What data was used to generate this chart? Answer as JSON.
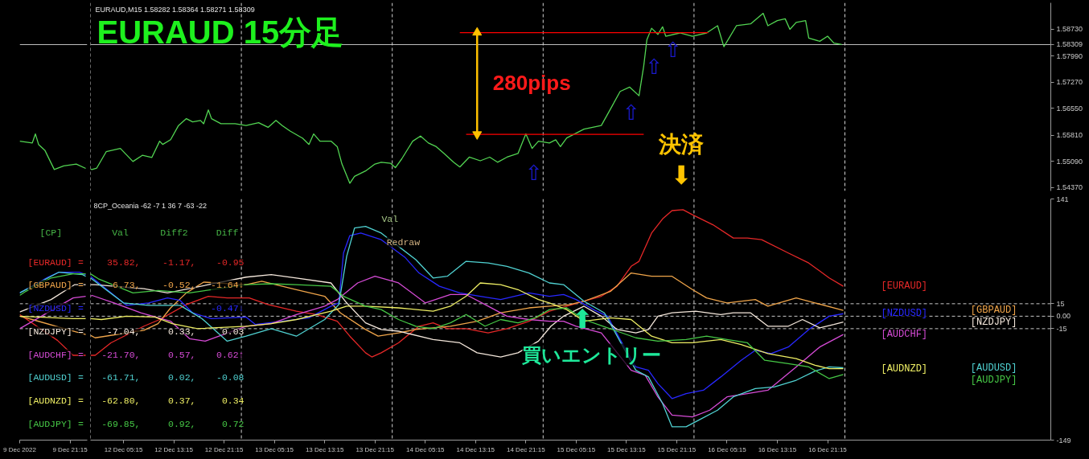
{
  "chart_data": [
    {
      "type": "line",
      "xlim": [
        "2022-12-09T13:15",
        "2022-12-10T00:00"
      ],
      "ylim": [
        1.5428,
        1.5946
      ],
      "tick_labels": false,
      "ref_lines": [
        {
          "axis": "y",
          "value": 1.58309,
          "color": "#c0c0c0",
          "line_style": "solid"
        }
      ],
      "series": [
        {
          "color": "#52d452",
          "x": [
            "2022-12-09T13:15",
            "2022-12-09T15:15",
            "2022-12-09T15:45",
            "2022-12-09T16:15",
            "2022-12-09T17:15",
            "2022-12-09T18:45",
            "2022-12-09T20:15",
            "2022-12-09T22:15",
            "2022-12-09T23:45"
          ],
          "values": [
            1.5565,
            1.556,
            1.5585,
            1.5556,
            1.554,
            1.5487,
            1.5497,
            1.5502,
            1.549
          ]
        }
      ]
    },
    {
      "type": "line",
      "title": "EURAUD 15分足",
      "subtitle": "EURAUD,M15 1.58282 1.58364 1.58271 1.58309",
      "xlim": [
        "2022-12-12T00:00",
        "2022-12-18T08:45"
      ],
      "ylim": [
        1.5428,
        1.5946
      ],
      "yticks": [
        {
          "value": 1.5873,
          "label": "1.58730"
        },
        {
          "value": 1.5799,
          "label": "1.57990"
        },
        {
          "value": 1.5727,
          "label": "1.57270"
        },
        {
          "value": 1.5655,
          "label": "1.56550"
        },
        {
          "value": 1.5581,
          "label": "1.55810"
        },
        {
          "value": 1.5509,
          "label": "1.55090"
        },
        {
          "value": 1.5437,
          "label": "1.54370"
        }
      ],
      "tick_labels": "y",
      "ref_lines": [
        {
          "axis": "y",
          "value": 1.58309,
          "label": "1.58309",
          "color": "#c0c0c0",
          "line_style": "solid"
        },
        {
          "axis": "x",
          "value": "2022-12-12T00:00",
          "color": "#d2d2d2",
          "line_style": "dashed"
        },
        {
          "axis": "x",
          "value": "2022-12-13T00:00",
          "color": "#d2d2d2",
          "line_style": "dashed"
        },
        {
          "axis": "x",
          "value": "2022-12-14T00:00",
          "color": "#d2d2d2",
          "line_style": "dashed"
        },
        {
          "axis": "x",
          "value": "2022-12-15T00:00",
          "color": "#d2d2d2",
          "line_style": "dashed"
        },
        {
          "axis": "x",
          "value": "2022-12-16T00:00",
          "color": "#d2d2d2",
          "line_style": "dashed"
        },
        {
          "axis": "x",
          "value": "2022-12-17T00:00",
          "color": "#d2d2d2",
          "line_style": "dashed"
        }
      ],
      "series": [
        {
          "color": "#52d452",
          "x": [
            "2022-12-12T00:00",
            "2022-12-12T00:15",
            "2022-12-12T01:00",
            "2022-12-12T02:30",
            "2022-12-12T04:45",
            "2022-12-12T06:45",
            "2022-12-12T08:15",
            "2022-12-12T09:45",
            "2022-12-12T11:00",
            "2022-12-12T11:30",
            "2022-12-12T12:45",
            "2022-12-12T14:00",
            "2022-12-12T15:15",
            "2022-12-12T16:15",
            "2022-12-12T17:30",
            "2022-12-12T18:00",
            "2022-12-12T18:45",
            "2022-12-12T19:15",
            "2022-12-12T20:45",
            "2022-12-12T23:00",
            "2022-12-13T00:45",
            "2022-12-13T02:45",
            "2022-12-13T04:15",
            "2022-12-13T05:30",
            "2022-12-13T06:30",
            "2022-12-13T07:45",
            "2022-12-13T09:45",
            "2022-12-13T10:45",
            "2022-12-13T11:30",
            "2022-12-13T12:30",
            "2022-12-13T14:15",
            "2022-12-13T15:15",
            "2022-12-13T16:00",
            "2022-12-13T17:15",
            "2022-12-13T18:00",
            "2022-12-13T19:45",
            "2022-12-13T21:15",
            "2022-12-13T22:15",
            "2022-12-13T23:45",
            "2022-12-14T00:30",
            "2022-12-14T01:30",
            "2022-12-14T03:15",
            "2022-12-14T04:30",
            "2022-12-14T05:45",
            "2022-12-14T07:00",
            "2022-12-14T08:15",
            "2022-12-14T09:45",
            "2022-12-14T10:45",
            "2022-12-14T12:15",
            "2022-12-14T14:00",
            "2022-12-14T15:30",
            "2022-12-14T16:45",
            "2022-12-14T18:15",
            "2022-12-14T20:00",
            "2022-12-14T21:15",
            "2022-12-14T22:15",
            "2022-12-14T23:15",
            "2022-12-15T01:00",
            "2022-12-15T02:00",
            "2022-12-15T02:45",
            "2022-12-15T03:45",
            "2022-12-15T06:30",
            "2022-12-15T09:15",
            "2022-12-15T10:30",
            "2022-12-15T12:15",
            "2022-12-15T13:45",
            "2022-12-15T15:15",
            "2022-12-15T16:00",
            "2022-12-15T16:30",
            "2022-12-15T17:15",
            "2022-12-15T18:15",
            "2022-12-15T19:00",
            "2022-12-15T19:30",
            "2022-12-15T21:45",
            "2022-12-15T23:45",
            "2022-12-16T02:00",
            "2022-12-16T03:45",
            "2022-12-16T04:45",
            "2022-12-16T06:45",
            "2022-12-16T09:00",
            "2022-12-16T11:00",
            "2022-12-16T11:45",
            "2022-12-16T13:15",
            "2022-12-16T14:30",
            "2022-12-16T15:15",
            "2022-12-16T16:15",
            "2022-12-16T17:45",
            "2022-12-16T18:15",
            "2022-12-16T20:00",
            "2022-12-16T21:15",
            "2022-12-16T22:15",
            "2022-12-16T23:30"
          ],
          "values": [
            1.5488,
            1.5487,
            1.5491,
            1.5536,
            1.5545,
            1.5509,
            1.5526,
            1.552,
            1.5565,
            1.5556,
            1.5569,
            1.5608,
            1.5627,
            1.5618,
            1.5622,
            1.5613,
            1.5651,
            1.5627,
            1.5613,
            1.5613,
            1.5608,
            1.5616,
            1.5603,
            1.5622,
            1.5608,
            1.5593,
            1.5573,
            1.5556,
            1.5585,
            1.5565,
            1.5565,
            1.555,
            1.5502,
            1.5449,
            1.5468,
            1.5483,
            1.5502,
            1.5507,
            1.5504,
            1.5492,
            1.5516,
            1.5565,
            1.5579,
            1.556,
            1.555,
            1.5531,
            1.5507,
            1.5494,
            1.5521,
            1.5511,
            1.5521,
            1.5507,
            1.5521,
            1.5531,
            1.5585,
            1.5545,
            1.5565,
            1.556,
            1.5569,
            1.555,
            1.5574,
            1.5598,
            1.5608,
            1.5647,
            1.5702,
            1.5714,
            1.569,
            1.5772,
            1.5844,
            1.5876,
            1.5859,
            1.588,
            1.5854,
            1.5863,
            1.5854,
            1.5863,
            1.5883,
            1.5825,
            1.5883,
            1.5888,
            1.5917,
            1.5883,
            1.5897,
            1.5902,
            1.5873,
            1.5892,
            1.5897,
            1.5849,
            1.584,
            1.5854,
            1.5835,
            1.5831
          ]
        },
        {
          "color": "#ff0000",
          "x": [
            "2022-12-14T10:45",
            "2022-12-16T02:15"
          ],
          "values": [
            1.5864,
            1.5864
          ]
        },
        {
          "color": "#ff0000",
          "x": [
            "2022-12-14T11:45",
            "2022-12-15T16:00"
          ],
          "values": [
            1.5584,
            1.5584
          ]
        },
        {
          "color": "#ffc000",
          "marker": "triangle",
          "x": [
            "2022-12-14T13:30",
            "2022-12-14T13:30"
          ],
          "values": [
            1.5864,
            1.5584
          ]
        }
      ],
      "annotations": [
        "280pips",
        "決済",
        "⬇",
        "⇧",
        "⇧",
        "⇧",
        "⇧"
      ]
    },
    {
      "type": "line",
      "xlim": [
        "2022-12-09T13:15",
        "2022-12-10T00:00"
      ],
      "xticks": [
        {
          "value": "2022-12-09T13:15",
          "label": "9 Dec 2022"
        },
        {
          "value": "2022-12-09T21:15",
          "label": "9 Dec 21:15"
        }
      ],
      "ylim": [
        -149,
        141
      ],
      "tick_labels": "x",
      "ref_lines": [
        {
          "axis": "y",
          "value": 15,
          "color": "#c8c8c8",
          "line_style": "dashed"
        },
        {
          "axis": "y",
          "value": 0,
          "color": "#c8c8c8",
          "line_style": "dashed"
        },
        {
          "axis": "y",
          "value": -15,
          "color": "#c8c8c8",
          "line_style": "dashed"
        }
      ],
      "series": [
        {
          "color": "#e62828",
          "x": [
            "2022-12-09T13:15",
            "2022-12-09T19:15",
            "2022-12-09T21:45",
            "2022-12-09T23:45"
          ],
          "values": [
            2,
            -29,
            -47,
            -47
          ]
        },
        {
          "color": "#f0a54a",
          "x": [
            "2022-12-09T13:15",
            "2022-12-09T15:15",
            "2022-12-09T21:45",
            "2022-12-09T23:45"
          ],
          "values": [
            0,
            -4,
            -18,
            -22
          ]
        },
        {
          "color": "#2828ff",
          "x": [
            "2022-12-09T13:15",
            "2022-12-09T17:45",
            "2022-12-09T19:30",
            "2022-12-09T22:45",
            "2022-12-09T23:45"
          ],
          "values": [
            28,
            47,
            53,
            53,
            50
          ]
        },
        {
          "color": "#f5e8dc",
          "x": [
            "2022-12-09T13:15",
            "2022-12-09T18:15",
            "2022-12-09T22:00",
            "2022-12-09T23:45"
          ],
          "values": [
            5,
            20,
            38,
            38
          ]
        },
        {
          "color": "#d64bd6",
          "x": [
            "2022-12-09T13:15",
            "2022-12-09T21:45",
            "2022-12-09T23:45"
          ],
          "values": [
            -15,
            22,
            24
          ]
        },
        {
          "color": "#50d2d2",
          "x": [
            "2022-12-09T13:15",
            "2022-12-09T19:30",
            "2022-12-09T23:15",
            "2022-12-09T23:45"
          ],
          "values": [
            28,
            53,
            50,
            48
          ]
        },
        {
          "color": "#eeee64",
          "x": [
            "2022-12-09T13:15",
            "2022-12-09T21:45",
            "2022-12-09T23:45"
          ],
          "values": [
            0,
            -3,
            -3
          ]
        },
        {
          "color": "#46c846",
          "x": [
            "2022-12-09T13:15",
            "2022-12-09T14:15",
            "2022-12-09T18:15",
            "2022-12-09T21:45",
            "2022-12-09T23:45"
          ],
          "values": [
            25,
            30,
            46,
            51,
            51
          ]
        }
      ],
      "annotations": [
        "[CP]",
        "[EURAUD] =",
        "[GBPAUD] =",
        "[NZDUSD] =",
        "[NZDJPY] =",
        "[AUDCHF] =",
        "[AUDUSD] =",
        "[AUDNZD] =",
        "[AUDJPY] ="
      ]
    },
    {
      "type": "line",
      "title": "8CP_Oceania -62 -7 1 36 7 -63 -22",
      "xlim": [
        "2022-12-12T00:00",
        "2022-12-18T08:45"
      ],
      "xticks": [
        {
          "value": "2022-12-12T05:15",
          "label": "12 Dec 05:15"
        },
        {
          "value": "2022-12-12T13:15",
          "label": "12 Dec 13:15"
        },
        {
          "value": "2022-12-12T21:15",
          "label": "12 Dec 21:15"
        },
        {
          "value": "2022-12-13T05:15",
          "label": "13 Dec 05:15"
        },
        {
          "value": "2022-12-13T13:15",
          "label": "13 Dec 13:15"
        },
        {
          "value": "2022-12-13T21:15",
          "label": "13 Dec 21:15"
        },
        {
          "value": "2022-12-14T05:15",
          "label": "14 Dec 05:15"
        },
        {
          "value": "2022-12-14T13:15",
          "label": "14 Dec 13:15"
        },
        {
          "value": "2022-12-14T21:15",
          "label": "14 Dec 21:15"
        },
        {
          "value": "2022-12-15T05:15",
          "label": "15 Dec 05:15"
        },
        {
          "value": "2022-12-15T13:15",
          "label": "15 Dec 13:15"
        },
        {
          "value": "2022-12-15T21:15",
          "label": "15 Dec 21:15"
        },
        {
          "value": "2022-12-16T05:15",
          "label": "16 Dec 05:15"
        },
        {
          "value": "2022-12-16T13:15",
          "label": "16 Dec 13:15"
        },
        {
          "value": "2022-12-16T21:15",
          "label": "16 Dec 21:15"
        }
      ],
      "ylim": [
        -149,
        141
      ],
      "yticks": [
        141,
        15,
        {
          "value": 0,
          "label": "0.00"
        },
        -15,
        -149
      ],
      "ref_lines": [
        {
          "axis": "y",
          "value": 15,
          "color": "#c8c8c8",
          "line_style": "dashed"
        },
        {
          "axis": "y",
          "value": 0,
          "color": "#c8c8c8",
          "line_style": "dashed"
        },
        {
          "axis": "y",
          "value": -15,
          "color": "#c8c8c8",
          "line_style": "dashed"
        },
        {
          "axis": "x",
          "value": "2022-12-12T00:00",
          "color": "#d2d2d2",
          "line_style": "dashed"
        },
        {
          "axis": "x",
          "value": "2022-12-13T00:00",
          "color": "#d2d2d2",
          "line_style": "dashed"
        },
        {
          "axis": "x",
          "value": "2022-12-14T00:00",
          "color": "#d2d2d2",
          "line_style": "dashed"
        },
        {
          "axis": "x",
          "value": "2022-12-15T00:00",
          "color": "#d2d2d2",
          "line_style": "dashed"
        },
        {
          "axis": "x",
          "value": "2022-12-16T00:00",
          "color": "#d2d2d2",
          "line_style": "dashed"
        },
        {
          "axis": "x",
          "value": "2022-12-17T00:00",
          "color": "#d2d2d2",
          "line_style": "dashed"
        }
      ],
      "series": [
        {
          "name": "[EURAUD]",
          "color": "#e62828",
          "x": [
            "2022-12-12T00:00",
            "2022-12-12T00:45",
            "2022-12-12T03:15",
            "2022-12-12T08:30",
            "2022-12-12T11:00",
            "2022-12-12T15:15",
            "2022-12-12T18:45",
            "2022-12-12T21:45",
            "2022-12-13T01:15",
            "2022-12-13T04:15",
            "2022-12-13T08:45",
            "2022-12-13T12:00",
            "2022-12-13T15:15",
            "2022-12-13T17:15",
            "2022-12-13T19:45",
            "2022-12-13T20:45",
            "2022-12-13T22:15",
            "2022-12-14T01:00",
            "2022-12-14T04:15",
            "2022-12-14T06:30",
            "2022-12-14T08:45",
            "2022-12-14T11:45",
            "2022-12-14T15:15",
            "2022-12-14T18:15",
            "2022-12-14T21:45",
            "2022-12-15T01:00",
            "2022-12-15T03:45",
            "2022-12-15T06:30",
            "2022-12-15T09:15",
            "2022-12-15T11:45",
            "2022-12-15T14:00",
            "2022-12-15T15:15",
            "2022-12-15T17:15",
            "2022-12-15T19:00",
            "2022-12-15T20:30",
            "2022-12-15T22:15",
            "2022-12-15T23:45",
            "2022-12-16T03:00",
            "2022-12-16T06:15",
            "2022-12-16T08:30",
            "2022-12-16T10:45",
            "2022-12-16T15:00",
            "2022-12-16T18:15",
            "2022-12-16T21:30",
            "2022-12-16T23:45"
          ],
          "values": [
            -47,
            -47,
            -32,
            -12,
            -4,
            14,
            24,
            22,
            22,
            14,
            6,
            2,
            -6,
            -24,
            -44,
            -49,
            -44,
            -32,
            -12,
            -8,
            -15,
            -15,
            -20,
            -15,
            -6,
            6,
            12,
            18,
            24,
            36,
            60,
            66,
            100,
            117,
            127,
            128,
            122,
            110,
            94,
            94,
            92,
            76,
            64,
            46,
            36
          ]
        },
        {
          "name": "[GBPAUD]",
          "color": "#f0a54a",
          "x": [
            "2022-12-12T00:00",
            "2022-12-12T00:45",
            "2022-12-12T08:30",
            "2022-12-12T10:45",
            "2022-12-12T12:45",
            "2022-12-12T15:15",
            "2022-12-12T18:00",
            "2022-12-13T00:45",
            "2022-12-13T03:15",
            "2022-12-13T08:45",
            "2022-12-13T13:15",
            "2022-12-13T15:45",
            "2022-12-13T19:45",
            "2022-12-13T21:45",
            "2022-12-14T01:00",
            "2022-12-14T03:45",
            "2022-12-14T09:15",
            "2022-12-14T13:30",
            "2022-12-14T17:15",
            "2022-12-14T21:45",
            "2022-12-15T01:00",
            "2022-12-15T04:15",
            "2022-12-15T06:30",
            "2022-12-15T10:45",
            "2022-12-15T14:00",
            "2022-12-15T17:15",
            "2022-12-15T20:30",
            "2022-12-15T23:45",
            "2022-12-16T02:00",
            "2022-12-16T05:15",
            "2022-12-16T09:45",
            "2022-12-16T11:45",
            "2022-12-16T16:15",
            "2022-12-16T19:15",
            "2022-12-16T23:45"
          ],
          "values": [
            -23,
            -26,
            -17,
            -9,
            10,
            28,
            41,
            38,
            42,
            32,
            24,
            4,
            -16,
            -24,
            -20,
            -16,
            -12,
            -6,
            4,
            10,
            12,
            14,
            18,
            30,
            52,
            48,
            48,
            32,
            22,
            16,
            20,
            12,
            22,
            16,
            7
          ]
        },
        {
          "name": "[NZDUSD]",
          "color": "#2828ff",
          "x": [
            "2022-12-12T00:00",
            "2022-12-12T04:15",
            "2022-12-12T05:45",
            "2022-12-12T09:15",
            "2022-12-12T12:15",
            "2022-12-12T14:15",
            "2022-12-12T16:15",
            "2022-12-12T19:15",
            "2022-12-13T00:45",
            "2022-12-13T02:15",
            "2022-12-13T06:30",
            "2022-12-13T10:45",
            "2022-12-13T14:15",
            "2022-12-13T15:30",
            "2022-12-13T16:15",
            "2022-12-13T17:15",
            "2022-12-13T19:00",
            "2022-12-13T22:15",
            "2022-12-14T02:00",
            "2022-12-14T04:15",
            "2022-12-14T07:30",
            "2022-12-14T10:45",
            "2022-12-14T14:00",
            "2022-12-14T17:15",
            "2022-12-14T21:45",
            "2022-12-15T01:00",
            "2022-12-15T03:15",
            "2022-12-15T05:15",
            "2022-12-15T08:15",
            "2022-12-15T10:15",
            "2022-12-15T12:15",
            "2022-12-15T14:45",
            "2022-12-15T16:45",
            "2022-12-15T18:15",
            "2022-12-15T20:30",
            "2022-12-15T22:45",
            "2022-12-16T01:30",
            "2022-12-16T04:15",
            "2022-12-16T07:30",
            "2022-12-16T09:45",
            "2022-12-16T12:15",
            "2022-12-16T15:00",
            "2022-12-16T18:15",
            "2022-12-16T21:30",
            "2022-12-16T23:45"
          ],
          "values": [
            48,
            22,
            13,
            16,
            22,
            19,
            4,
            -3,
            -1,
            -10,
            -6,
            -2,
            12,
            16,
            76,
            97,
            100,
            92,
            71,
            52,
            36,
            28,
            24,
            20,
            28,
            24,
            26,
            20,
            7,
            0,
            -28,
            -61,
            -65,
            -81,
            -99,
            -93,
            -89,
            -73,
            -53,
            -41,
            -45,
            -37,
            -16,
            0,
            3
          ]
        },
        {
          "name": "[NZDJPY]",
          "color": "#f5e8dc",
          "x": [
            "2022-12-12T00:00",
            "2022-12-12T00:45",
            "2022-12-12T08:30",
            "2022-12-12T12:15",
            "2022-12-13T00:45",
            "2022-12-13T04:45",
            "2022-12-13T08:45",
            "2022-12-13T14:15",
            "2022-12-13T16:45",
            "2022-12-13T19:45",
            "2022-12-13T22:15",
            "2022-12-14T01:00",
            "2022-12-14T06:30",
            "2022-12-14T10:45",
            "2022-12-14T13:30",
            "2022-12-14T17:15",
            "2022-12-14T20:00",
            "2022-12-14T23:15",
            "2022-12-15T01:15",
            "2022-12-15T03:15",
            "2022-12-15T06:30",
            "2022-12-15T09:15",
            "2022-12-15T11:45",
            "2022-12-15T14:45",
            "2022-12-15T16:45",
            "2022-12-15T18:15",
            "2022-12-15T20:30",
            "2022-12-16T00:15",
            "2022-12-16T04:15",
            "2022-12-16T06:15",
            "2022-12-16T09:00",
            "2022-12-16T11:45",
            "2022-12-16T15:00",
            "2022-12-16T17:15",
            "2022-12-16T20:00",
            "2022-12-16T22:15",
            "2022-12-16T23:45"
          ],
          "values": [
            38,
            38,
            33,
            28,
            47,
            50,
            46,
            40,
            16,
            -8,
            -16,
            -18,
            -28,
            -32,
            -44,
            -49,
            -44,
            -30,
            -12,
            0,
            12,
            0,
            -16,
            -20,
            -16,
            0,
            4,
            6,
            2,
            4,
            4,
            -12,
            -12,
            -4,
            -14,
            -10,
            -7
          ]
        },
        {
          "name": "[AUDCHF]",
          "color": "#d64bd6",
          "x": [
            "2022-12-12T00:00",
            "2022-12-12T00:15",
            "2022-12-12T03:45",
            "2022-12-12T08:00",
            "2022-12-12T12:45",
            "2022-12-12T15:45",
            "2022-12-12T18:15",
            "2022-12-13T00:45",
            "2022-12-13T04:45",
            "2022-12-13T08:45",
            "2022-12-13T13:15",
            "2022-12-13T15:15",
            "2022-12-13T18:30",
            "2022-12-13T21:15",
            "2022-12-14T01:00",
            "2022-12-14T05:15",
            "2022-12-14T09:15",
            "2022-12-14T11:45",
            "2022-12-14T15:15",
            "2022-12-14T18:15",
            "2022-12-14T21:45",
            "2022-12-15T01:00",
            "2022-12-15T03:15",
            "2022-12-15T05:15",
            "2022-12-15T09:15",
            "2022-12-15T14:00",
            "2022-12-15T16:15",
            "2022-12-15T18:15",
            "2022-12-15T20:30",
            "2022-12-15T23:45",
            "2022-12-16T02:30",
            "2022-12-16T05:15",
            "2022-12-16T08:30",
            "2022-12-16T11:45",
            "2022-12-16T16:15",
            "2022-12-16T20:00",
            "2022-12-16T23:45"
          ],
          "values": [
            24,
            25,
            16,
            4,
            -6,
            -27,
            -30,
            -12,
            -9,
            2,
            12,
            20,
            40,
            48,
            40,
            16,
            26,
            26,
            12,
            0,
            -4,
            -6,
            -6,
            -12,
            -20,
            -65,
            -71,
            -97,
            -119,
            -121,
            -113,
            -97,
            -93,
            -89,
            -61,
            -37,
            -22
          ]
        },
        {
          "name": "[AUDUSD]",
          "color": "#50d2d2",
          "x": [
            "2022-12-12T00:00",
            "2022-12-12T05:15",
            "2022-12-12T09:15",
            "2022-12-12T14:15",
            "2022-12-12T17:45",
            "2022-12-12T21:45",
            "2022-12-13T00:45",
            "2022-12-13T04:45",
            "2022-12-13T08:45",
            "2022-12-13T13:15",
            "2022-12-13T15:30",
            "2022-12-13T16:45",
            "2022-12-13T18:00",
            "2022-12-13T19:45",
            "2022-12-13T22:15",
            "2022-12-14T03:45",
            "2022-12-14T06:30",
            "2022-12-14T08:45",
            "2022-12-14T11:45",
            "2022-12-14T15:15",
            "2022-12-14T18:15",
            "2022-12-14T21:45",
            "2022-12-15T01:00",
            "2022-12-15T03:15",
            "2022-12-15T06:30",
            "2022-12-15T09:45",
            "2022-12-15T14:45",
            "2022-12-15T16:45",
            "2022-12-15T19:00",
            "2022-12-15T20:30",
            "2022-12-15T22:45",
            "2022-12-16T00:45",
            "2022-12-16T03:45",
            "2022-12-16T06:15",
            "2022-12-16T09:45",
            "2022-12-16T12:45",
            "2022-12-16T16:15",
            "2022-12-16T19:15",
            "2022-12-16T21:30",
            "2022-12-16T23:45"
          ],
          "values": [
            46,
            16,
            13,
            13,
            -3,
            -30,
            -24,
            -15,
            -24,
            -4,
            14,
            72,
            106,
            108,
            100,
            68,
            46,
            48,
            66,
            64,
            60,
            52,
            40,
            38,
            18,
            4,
            -65,
            -73,
            -105,
            -133,
            -133,
            -125,
            -113,
            -97,
            -87,
            -85,
            -77,
            -66,
            -61,
            -62
          ]
        },
        {
          "name": "[AUDNZD]",
          "color": "#eeee64",
          "x": [
            "2022-12-12T00:00",
            "2022-12-12T01:45",
            "2022-12-12T05:45",
            "2022-12-12T10:15",
            "2022-12-12T13:00",
            "2022-12-12T17:00",
            "2022-12-13T00:45",
            "2022-12-13T04:45",
            "2022-12-13T08:45",
            "2022-12-13T14:15",
            "2022-12-13T16:45",
            "2022-12-13T19:45",
            "2022-12-14T01:00",
            "2022-12-14T06:30",
            "2022-12-14T09:15",
            "2022-12-14T11:45",
            "2022-12-14T14:00",
            "2022-12-14T17:15",
            "2022-12-14T20:00",
            "2022-12-14T23:15",
            "2022-12-15T01:00",
            "2022-12-15T03:45",
            "2022-12-15T06:30",
            "2022-12-15T10:45",
            "2022-12-15T14:00",
            "2022-12-15T17:15",
            "2022-12-15T20:30",
            "2022-12-15T23:45",
            "2022-12-16T04:15",
            "2022-12-16T07:30",
            "2022-12-16T11:45",
            "2022-12-16T16:15",
            "2022-12-16T19:15",
            "2022-12-16T21:30",
            "2022-12-16T23:45"
          ],
          "values": [
            -3,
            -4,
            0,
            -1,
            -9,
            -15,
            -12,
            -9,
            -4,
            6,
            12,
            12,
            10,
            6,
            12,
            24,
            40,
            38,
            32,
            20,
            16,
            8,
            -6,
            -2,
            -4,
            -24,
            -32,
            -32,
            -28,
            -34,
            -45,
            -51,
            -59,
            -63,
            -63
          ]
        },
        {
          "name": "[AUDJPY]",
          "color": "#46c846",
          "x": [
            "2022-12-12T00:00",
            "2022-12-12T01:15",
            "2022-12-12T06:45",
            "2022-12-12T10:45",
            "2022-12-12T15:45",
            "2022-12-13T00:45",
            "2022-12-13T04:45",
            "2022-12-13T08:45",
            "2022-12-13T14:15",
            "2022-12-13T16:15",
            "2022-12-13T19:45",
            "2022-12-13T22:15",
            "2022-12-14T01:00",
            "2022-12-14T03:45",
            "2022-12-14T06:30",
            "2022-12-14T09:15",
            "2022-12-14T11:45",
            "2022-12-14T14:45",
            "2022-12-14T17:15",
            "2022-12-14T20:00",
            "2022-12-14T22:45",
            "2022-12-15T01:00",
            "2022-12-15T03:45",
            "2022-12-15T06:30",
            "2022-12-15T10:15",
            "2022-12-15T14:45",
            "2022-12-15T18:15",
            "2022-12-15T22:45",
            "2022-12-16T02:00",
            "2022-12-16T05:15",
            "2022-12-16T08:30",
            "2022-12-16T11:15",
            "2022-12-16T15:00",
            "2022-12-16T18:15",
            "2022-12-16T21:30",
            "2022-12-16T23:45"
          ],
          "values": [
            51,
            45,
            28,
            31,
            28,
            38,
            39,
            38,
            36,
            24,
            12,
            8,
            -4,
            -12,
            -15,
            -8,
            2,
            -12,
            -4,
            -8,
            -2,
            8,
            10,
            -4,
            -14,
            -26,
            -30,
            -28,
            -24,
            -28,
            -32,
            -53,
            -57,
            -61,
            -75,
            -70
          ]
        }
      ],
      "annotations": [
        "Val Diff2 Diff",
        "35.82, -1.17, -0.95",
        "6.73, -0.52, -1.64↓",
        "-0.47↓",
        "-7.04, 0.33, 0.03",
        "-21.70, 0.57, 0.62↑",
        "-61.71, 0.02, -0.08",
        "-62.80, 0.37, 0.34",
        "-69.85, 0.92, 0.72",
        "Val",
        "Redraw",
        "⬆",
        "買いエントリー"
      ]
    }
  ]
}
